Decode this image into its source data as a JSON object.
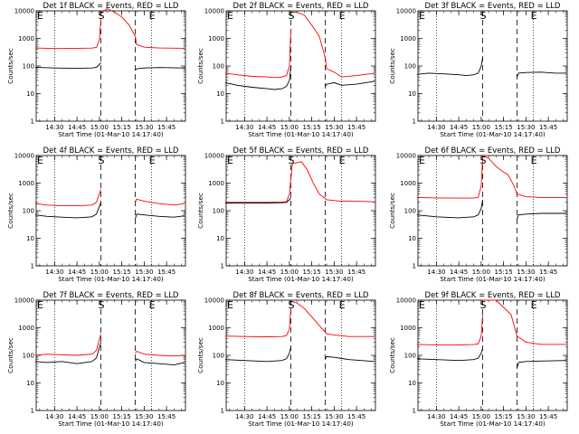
{
  "chart_data": {
    "type": "line",
    "layout_grid": "3x3",
    "y_scale": "log",
    "ylim": [
      1,
      10000
    ],
    "y_ticks": [
      1,
      10,
      100,
      1000,
      10000
    ],
    "y_tick_labels": [
      "1",
      "10",
      "100",
      "1000",
      "10000"
    ],
    "x_range": [
      "14:17:40",
      "15:57:40"
    ],
    "x_ticks": [
      "14:30",
      "14:45",
      "15:00",
      "15:15",
      "15:30",
      "15:45"
    ],
    "ylabel": "Counts/sec",
    "xlabel": "Start Time (01-Mar-10 14:17:40)",
    "colors": {
      "events": "#000000",
      "lld": "#ff0000"
    },
    "dotted_lines_at": [
      "14:30",
      "15:35"
    ],
    "dashed_lines_at": [
      "15:01",
      "15:24"
    ],
    "markers": [
      {
        "text": "E",
        "at": "14:17",
        "kind": "top-left"
      },
      {
        "text": "S",
        "at": "15:01",
        "kind": "top"
      },
      {
        "text": "E",
        "at": "15:35",
        "kind": "top"
      }
    ],
    "panels": [
      {
        "title": "Det 1f BLACK = Events, RED = LLD",
        "series": [
          {
            "color": "red",
            "segments": [
              {
                "x": [
                  "14:17",
                  "14:30",
                  "14:45",
                  "14:55",
                  "14:58",
                  "15:00",
                  "15:01"
                ],
                "y": [
                  450,
                  430,
                  440,
                  445,
                  470,
                  900,
                  5000
                ]
              },
              {
                "x": [
                  "15:01",
                  "15:05",
                  "15:10",
                  "15:15",
                  "15:20",
                  "15:24",
                  "15:25",
                  "15:30",
                  "15:40",
                  "15:57"
                ],
                "y": [
                  8000,
                  12000,
                  9000,
                  6000,
                  3000,
                  1200,
                  600,
                  480,
                  450,
                  440
                ]
              }
            ]
          },
          {
            "color": "black",
            "segments": [
              {
                "x": [
                  "14:17",
                  "14:30",
                  "14:45",
                  "14:55",
                  "14:58",
                  "15:01"
                ],
                "y": [
                  90,
                  85,
                  82,
                  85,
                  90,
                  130
                ]
              },
              {
                "x": [
                  "15:24",
                  "15:25",
                  "15:30",
                  "15:40",
                  "15:57"
                ],
                "y": [
                  70,
                  80,
                  85,
                  88,
                  85
                ]
              }
            ]
          }
        ]
      },
      {
        "title": "Det 2f BLACK = Events, RED = LLD",
        "series": [
          {
            "color": "red",
            "segments": [
              {
                "x": [
                  "14:17",
                  "14:25",
                  "14:35",
                  "14:45",
                  "14:50",
                  "14:55",
                  "14:58",
                  "15:00",
                  "15:01"
                ],
                "y": [
                  55,
                  48,
                  42,
                  40,
                  38,
                  40,
                  45,
                  100,
                  2000
                ]
              },
              {
                "x": [
                  "15:01",
                  "15:05",
                  "15:10",
                  "15:15",
                  "15:20",
                  "15:24",
                  "15:25",
                  "15:30",
                  "15:35",
                  "15:45",
                  "15:57"
                ],
                "y": [
                  9000,
                  9000,
                  7000,
                  3000,
                  1200,
                  200,
                  80,
                  60,
                  40,
                  45,
                  55
                ]
              }
            ]
          },
          {
            "color": "black",
            "segments": [
              {
                "x": [
                  "14:17",
                  "14:25",
                  "14:35",
                  "14:45",
                  "14:50",
                  "14:55",
                  "14:58",
                  "15:00",
                  "15:01"
                ],
                "y": [
                  25,
                  20,
                  17,
                  15,
                  14,
                  15,
                  18,
                  30,
                  100
                ]
              },
              {
                "x": [
                  "15:24",
                  "15:25",
                  "15:30",
                  "15:35",
                  "15:45",
                  "15:57"
                ],
                "y": [
                  18,
                  22,
                  25,
                  20,
                  22,
                  28
                ]
              }
            ]
          }
        ]
      },
      {
        "title": "Det 3f BLACK = Events, RED = LLD",
        "series": [
          {
            "color": "black",
            "segments": [
              {
                "x": [
                  "14:17",
                  "14:25",
                  "14:35",
                  "14:45",
                  "14:50",
                  "14:55",
                  "14:58",
                  "15:00",
                  "15:01"
                ],
                "y": [
                  50,
                  55,
                  52,
                  48,
                  45,
                  48,
                  55,
                  100,
                  200
                ]
              },
              {
                "x": [
                  "15:24",
                  "15:25",
                  "15:30",
                  "15:40",
                  "15:50",
                  "15:57"
                ],
                "y": [
                  40,
                  55,
                  58,
                  60,
                  55,
                  55
                ]
              }
            ]
          }
        ]
      },
      {
        "title": "Det 4f BLACK = Events, RED = LLD",
        "series": [
          {
            "color": "red",
            "segments": [
              {
                "x": [
                  "14:17",
                  "14:25",
                  "14:35",
                  "14:45",
                  "14:55",
                  "14:58",
                  "15:01"
                ],
                "y": [
                  180,
                  160,
                  150,
                  150,
                  160,
                  200,
                  600
                ]
              },
              {
                "x": [
                  "15:24",
                  "15:25",
                  "15:30",
                  "15:40",
                  "15:50",
                  "15:57"
                ],
                "y": [
                  200,
                  260,
                  220,
                  180,
                  160,
                  180
                ]
              }
            ]
          },
          {
            "color": "black",
            "segments": [
              {
                "x": [
                  "14:17",
                  "14:25",
                  "14:35",
                  "14:45",
                  "14:55",
                  "14:58",
                  "15:01"
                ],
                "y": [
                  70,
                  62,
                  58,
                  55,
                  60,
                  75,
                  200
                ]
              },
              {
                "x": [
                  "15:24",
                  "15:25",
                  "15:30",
                  "15:40",
                  "15:50",
                  "15:57"
                ],
                "y": [
                  50,
                  75,
                  70,
                  62,
                  58,
                  65
                ]
              }
            ]
          }
        ]
      },
      {
        "title": "Det 5f BLACK = Events, RED = LLD",
        "series": [
          {
            "color": "red",
            "segments": [
              {
                "x": [
                  "14:17",
                  "14:30",
                  "14:45",
                  "14:55",
                  "14:58",
                  "15:00",
                  "15:02",
                  "15:08",
                  "15:12",
                  "15:16",
                  "15:20",
                  "15:25",
                  "15:35",
                  "15:45",
                  "15:57"
                ],
                "y": [
                  200,
                  200,
                  200,
                  205,
                  210,
                  400,
                  5000,
                  6000,
                  3000,
                  1000,
                  400,
                  250,
                  220,
                  220,
                  210
                ]
              }
            ]
          },
          {
            "color": "black",
            "segments": [
              {
                "x": [
                  "14:17",
                  "14:30",
                  "14:45",
                  "14:55",
                  "14:58",
                  "15:00",
                  "15:01"
                ],
                "y": [
                  190,
                  190,
                  190,
                  195,
                  200,
                  250,
                  300
                ]
              }
            ]
          }
        ]
      },
      {
        "title": "Det 6f BLACK = Events, RED = LLD",
        "series": [
          {
            "color": "red",
            "segments": [
              {
                "x": [
                  "14:17",
                  "14:30",
                  "14:45",
                  "14:55",
                  "14:58",
                  "15:00",
                  "15:01"
                ],
                "y": [
                  300,
                  290,
                  285,
                  285,
                  300,
                  800,
                  8000
                ]
              },
              {
                "x": [
                  "15:01",
                  "15:05",
                  "15:10",
                  "15:15",
                  "15:18",
                  "15:22",
                  "15:24",
                  "15:30",
                  "15:40",
                  "15:57"
                ],
                "y": [
                  10000,
                  8000,
                  4000,
                  2500,
                  2000,
                  800,
                  400,
                  320,
                  300,
                  300
                ]
              }
            ]
          },
          {
            "color": "black",
            "segments": [
              {
                "x": [
                  "14:17",
                  "14:30",
                  "14:45",
                  "14:55",
                  "14:58",
                  "15:00",
                  "15:01"
                ],
                "y": [
                  70,
                  60,
                  55,
                  60,
                  70,
                  120,
                  250
                ]
              },
              {
                "x": [
                  "15:24",
                  "15:25",
                  "15:30",
                  "15:40",
                  "15:57"
                ],
                "y": [
                  50,
                  70,
                  75,
                  80,
                  80
                ]
              }
            ]
          }
        ]
      },
      {
        "title": "Det 7f BLACK = Events, RED = LLD",
        "series": [
          {
            "color": "red",
            "segments": [
              {
                "x": [
                  "14:17",
                  "14:25",
                  "14:35",
                  "14:45",
                  "14:55",
                  "14:58",
                  "15:01"
                ],
                "y": [
                  100,
                  110,
                  105,
                  100,
                  110,
                  150,
                  600
                ]
              },
              {
                "x": [
                  "15:24",
                  "15:25",
                  "15:30",
                  "15:40",
                  "15:50",
                  "15:57"
                ],
                "y": [
                  120,
                  140,
                  110,
                  100,
                  95,
                  100
                ]
              }
            ]
          },
          {
            "color": "black",
            "segments": [
              {
                "x": [
                  "14:17",
                  "14:25",
                  "14:35",
                  "14:45",
                  "14:55",
                  "14:58",
                  "15:01"
                ],
                "y": [
                  60,
                  55,
                  60,
                  50,
                  60,
                  80,
                  300
                ]
              },
              {
                "x": [
                  "15:24",
                  "15:25",
                  "15:30",
                  "15:40",
                  "15:50",
                  "15:57"
                ],
                "y": [
                  60,
                  75,
                  55,
                  50,
                  45,
                  55
                ]
              }
            ]
          }
        ]
      },
      {
        "title": "Det 8f BLACK = Events, RED = LLD",
        "series": [
          {
            "color": "red",
            "segments": [
              {
                "x": [
                  "14:17",
                  "14:30",
                  "14:45",
                  "14:55",
                  "14:58",
                  "15:00",
                  "15:01"
                ],
                "y": [
                  500,
                  480,
                  470,
                  480,
                  520,
                  900,
                  5000
                ]
              },
              {
                "x": [
                  "15:01",
                  "15:05",
                  "15:10",
                  "15:15",
                  "15:20",
                  "15:24",
                  "15:25",
                  "15:30",
                  "15:40",
                  "15:57"
                ],
                "y": [
                  9000,
                  8000,
                  5000,
                  2500,
                  1200,
                  700,
                  600,
                  550,
                  480,
                  480
                ]
              }
            ]
          },
          {
            "color": "black",
            "segments": [
              {
                "x": [
                  "14:17",
                  "14:30",
                  "14:45",
                  "14:55",
                  "14:58",
                  "15:00",
                  "15:01"
                ],
                "y": [
                  70,
                  65,
                  60,
                  65,
                  75,
                  120,
                  200
                ]
              },
              {
                "x": [
                  "15:24",
                  "15:25",
                  "15:30",
                  "15:40",
                  "15:57"
                ],
                "y": [
                  75,
                  90,
                  85,
                  70,
                  60
                ]
              }
            ]
          }
        ]
      },
      {
        "title": "Det 9f BLACK = Events, RED = LLD",
        "series": [
          {
            "color": "red",
            "segments": [
              {
                "x": [
                  "14:17",
                  "14:30",
                  "14:45",
                  "14:55",
                  "14:58",
                  "15:00",
                  "15:01"
                ],
                "y": [
                  250,
                  240,
                  240,
                  245,
                  260,
                  500,
                  3000
                ]
              },
              {
                "x": [
                  "15:01",
                  "15:10",
                  "15:20",
                  "15:24",
                  "15:30",
                  "15:40",
                  "15:57"
                ],
                "y": [
                  10000,
                  10000,
                  3000,
                  500,
                  300,
                  250,
                  250
                ]
              }
            ]
          },
          {
            "color": "black",
            "segments": [
              {
                "x": [
                  "14:17",
                  "14:30",
                  "14:45",
                  "14:55",
                  "14:58",
                  "15:00",
                  "15:01"
                ],
                "y": [
                  75,
                  70,
                  65,
                  70,
                  80,
                  120,
                  180
                ]
              },
              {
                "x": [
                  "15:24",
                  "15:25",
                  "15:30",
                  "15:40",
                  "15:57"
                ],
                "y": [
                  35,
                  55,
                  60,
                  62,
                  65
                ]
              }
            ]
          }
        ]
      }
    ]
  }
}
